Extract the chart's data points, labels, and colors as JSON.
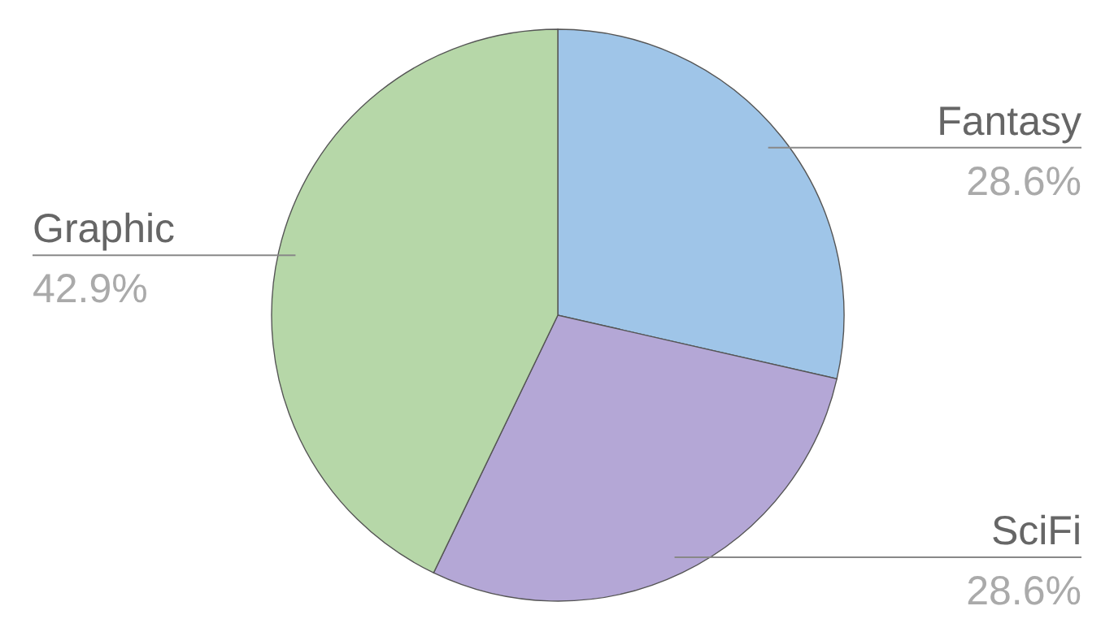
{
  "chart_data": {
    "type": "pie",
    "categories": [
      "Fantasy",
      "SciFi",
      "Graphic"
    ],
    "values": [
      28.6,
      28.6,
      42.9
    ],
    "value_labels": [
      "28.6%",
      "28.6%",
      "42.9%"
    ],
    "colors": [
      "#9fc5e8",
      "#b4a7d6",
      "#b6d7a8"
    ],
    "legend": false
  }
}
